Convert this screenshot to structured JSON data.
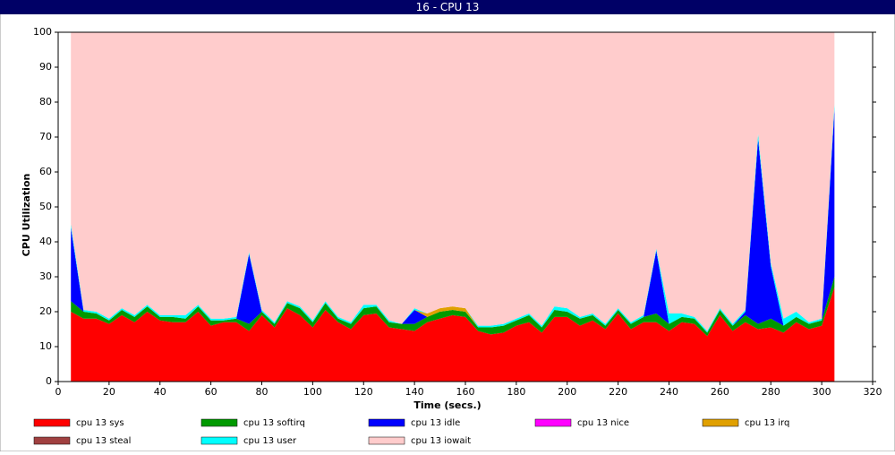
{
  "chart_data": {
    "type": "stacked_area",
    "title": "16 - CPU 13",
    "x_label": "Time (secs.)",
    "y_label": "CPU Utilization",
    "xlim": [
      0,
      320
    ],
    "xticks": [
      0,
      20,
      40,
      60,
      80,
      100,
      120,
      140,
      160,
      180,
      200,
      220,
      240,
      260,
      280,
      300,
      320
    ],
    "ylim": [
      0,
      100
    ],
    "yticks": [
      0,
      10,
      20,
      30,
      40,
      50,
      60,
      70,
      80,
      90,
      100
    ],
    "x": [
      5,
      10,
      15,
      20,
      25,
      30,
      35,
      40,
      45,
      50,
      55,
      60,
      65,
      70,
      75,
      80,
      85,
      90,
      95,
      100,
      105,
      110,
      115,
      120,
      125,
      130,
      135,
      140,
      145,
      150,
      155,
      160,
      165,
      170,
      175,
      180,
      185,
      190,
      195,
      200,
      205,
      210,
      215,
      220,
      225,
      230,
      235,
      240,
      245,
      250,
      255,
      260,
      265,
      270,
      275,
      280,
      285,
      290,
      295,
      300,
      305
    ],
    "series": [
      {
        "name": "cpu 13 sys",
        "color": "#ff0000",
        "values": [
          20,
          18,
          18,
          16.5,
          19,
          17,
          20,
          17.5,
          17,
          17,
          20,
          16,
          17,
          17,
          14.5,
          19,
          15.5,
          21,
          19,
          15.5,
          20.5,
          17,
          15,
          19,
          19.5,
          15.5,
          15,
          14.5,
          17,
          18,
          19,
          18.5,
          14.5,
          13.5,
          14,
          16,
          17,
          14,
          18.5,
          18.5,
          16,
          17.5,
          15,
          19.5,
          15,
          17,
          17,
          14.5,
          17,
          16.5,
          13,
          19,
          14.5,
          17,
          15,
          15.5,
          14,
          17,
          15,
          16,
          27
        ]
      },
      {
        "name": "cpu 13 softirq",
        "color": "#009900",
        "values": [
          3,
          2,
          1.5,
          1,
          1.5,
          1.5,
          1.5,
          1,
          1.5,
          1,
          1.5,
          1.5,
          0.5,
          1,
          2,
          1,
          1,
          1.5,
          2,
          1.5,
          2,
          1,
          1.5,
          2,
          2,
          1.5,
          1.5,
          2,
          1.5,
          2,
          1.5,
          1.5,
          1,
          2,
          2,
          1.5,
          2,
          1.5,
          2,
          1.5,
          2,
          1.5,
          1,
          1,
          1.5,
          1.5,
          2.5,
          2,
          1.5,
          1.5,
          1,
          1.5,
          1.5,
          2,
          1.5,
          2.5,
          2,
          1.5,
          1.5,
          1.5,
          3
        ]
      },
      {
        "name": "cpu 13 idle",
        "color": "#0000ff",
        "values": [
          21,
          0,
          0,
          0,
          0,
          0,
          0,
          0,
          0,
          0,
          0,
          0,
          0,
          0,
          20,
          0,
          0,
          0,
          0,
          0,
          0,
          0,
          0,
          0,
          0,
          0,
          0,
          4,
          0,
          0,
          0,
          0,
          0,
          0,
          0,
          0,
          0,
          0,
          0,
          0,
          0,
          0,
          0,
          0,
          0,
          0,
          18,
          0,
          0,
          0,
          0,
          0,
          0,
          1,
          53,
          15,
          0,
          0,
          0,
          0,
          48
        ]
      },
      {
        "name": "cpu 13 nice",
        "color": "#ff00ff",
        "values": [
          0,
          0,
          0,
          0,
          0,
          0,
          0,
          0,
          0,
          0,
          0,
          0,
          0,
          0,
          0,
          0,
          0,
          0,
          0,
          0,
          0,
          0,
          0,
          0,
          0,
          0,
          0,
          0,
          0,
          0,
          0,
          0,
          0,
          0,
          0,
          0,
          0,
          0,
          0,
          0,
          0,
          0,
          0,
          0,
          0,
          0,
          0,
          0,
          0,
          0,
          0,
          0,
          0,
          0,
          0,
          0,
          0,
          0,
          0,
          0,
          0
        ]
      },
      {
        "name": "cpu 13 irq",
        "color": "#e0a000",
        "values": [
          0,
          0,
          0,
          0,
          0,
          0,
          0,
          0,
          0,
          0,
          0,
          0,
          0,
          0,
          0,
          0,
          0,
          0,
          0,
          0,
          0,
          0,
          0,
          0,
          0,
          0,
          0,
          0,
          1,
          1,
          1,
          1,
          0,
          0,
          0,
          0,
          0,
          0,
          0,
          0,
          0,
          0,
          0,
          0,
          0,
          0,
          0,
          0,
          0,
          0,
          0,
          0,
          0,
          0,
          0,
          0,
          0,
          0,
          0,
          0,
          0
        ]
      },
      {
        "name": "cpu 13 steal",
        "color": "#a04040",
        "values": [
          0,
          0,
          0,
          0,
          0,
          0,
          0,
          0,
          0,
          0,
          0,
          0,
          0,
          0,
          0,
          0,
          0,
          0,
          0,
          0,
          0,
          0,
          0,
          0,
          0,
          0,
          0,
          0,
          0,
          0,
          0,
          0,
          0,
          0,
          0,
          0,
          0,
          0,
          0,
          0,
          0,
          0,
          0,
          0,
          0,
          0,
          0,
          0,
          0,
          0,
          0,
          0,
          0,
          0,
          0,
          0,
          0,
          0,
          0,
          0,
          0
        ]
      },
      {
        "name": "cpu 13 user",
        "color": "#00ffff",
        "values": [
          1,
          0.5,
          0.5,
          0.5,
          0.5,
          0.5,
          0.5,
          0.5,
          0.5,
          1,
          0.5,
          0.5,
          0.5,
          0.5,
          0.5,
          0.5,
          0.5,
          0.5,
          0.5,
          0.5,
          0.5,
          0.5,
          0.5,
          1,
          0.5,
          0.5,
          0,
          0.5,
          0,
          0,
          0,
          0,
          0.5,
          0.5,
          0.5,
          0.5,
          0.5,
          0.5,
          1,
          1,
          0.5,
          0.5,
          0.5,
          0.5,
          0.5,
          0.5,
          0.5,
          3,
          1,
          0.5,
          0.5,
          0.5,
          0.5,
          0.5,
          1.5,
          1,
          2,
          1.5,
          0.5,
          0.5,
          1.5
        ]
      },
      {
        "name": "cpu 13 iowait",
        "color": "#ffcccc",
        "values": [
          55,
          79.5,
          80,
          82,
          79,
          81,
          78,
          81,
          81,
          81,
          78,
          82,
          82,
          81.5,
          63,
          79.5,
          83,
          77,
          78.5,
          82.5,
          77,
          81.5,
          83,
          78,
          78,
          82.5,
          83.5,
          79,
          80.5,
          79,
          78.5,
          79,
          84,
          84,
          83.5,
          82,
          80.5,
          84,
          78.5,
          79,
          81.5,
          80.5,
          83.5,
          79,
          83,
          81,
          62,
          80.5,
          80.5,
          81.5,
          85.5,
          79,
          83.5,
          79.5,
          29,
          66,
          82,
          80,
          83,
          82,
          20.5
        ]
      }
    ]
  }
}
